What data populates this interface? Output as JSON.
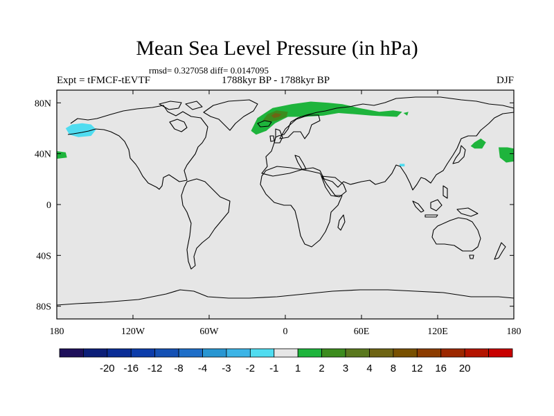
{
  "title": "Mean Sea Level Pressure (in hPa)",
  "stats": "rmsd= 0.327058 diff= 0.0147095",
  "experiment": "Expt = tFMCF-tEVTF",
  "period": "1788kyr BP - 1788kyr BP",
  "season": "DJF",
  "lon_ticks": [
    {
      "value": -180,
      "label": "180"
    },
    {
      "value": -120,
      "label": "120W"
    },
    {
      "value": -60,
      "label": "60W"
    },
    {
      "value": 0,
      "label": "0"
    },
    {
      "value": 60,
      "label": "60E"
    },
    {
      "value": 120,
      "label": "120E"
    },
    {
      "value": 180,
      "label": "180"
    }
  ],
  "lat_ticks": [
    {
      "value": 80,
      "label": "80N"
    },
    {
      "value": 40,
      "label": "40N"
    },
    {
      "value": 0,
      "label": "0"
    },
    {
      "value": -40,
      "label": "40S"
    },
    {
      "value": -80,
      "label": "80S"
    }
  ],
  "colorbar": {
    "colors": [
      "#1e0f5a",
      "#0c1e78",
      "#0a2d96",
      "#0c3caa",
      "#1450b4",
      "#1e6ec8",
      "#2896d2",
      "#3cb4e6",
      "#50dcf0",
      "#e6e6e6",
      "#1eb43c",
      "#3c8c1e",
      "#5a781e",
      "#6e6414",
      "#785000",
      "#8c3c00",
      "#9c2800",
      "#b41400",
      "#c80000"
    ],
    "labels": [
      "-20",
      "-16",
      "-12",
      "-8",
      "-4",
      "-3",
      "-2",
      "-1",
      "1",
      "2",
      "3",
      "4",
      "8",
      "12",
      "16",
      "20"
    ]
  },
  "anomalies": [
    {
      "name": "anomaly-alaska",
      "color": "#50dcf0",
      "category": "-2 to -1",
      "points": [
        [
          -168,
          63
        ],
        [
          -160,
          64
        ],
        [
          -153,
          63
        ],
        [
          -149,
          59
        ],
        [
          -153,
          54
        ],
        [
          -163,
          53
        ],
        [
          -170,
          55
        ],
        [
          -173,
          60
        ]
      ]
    },
    {
      "name": "anomaly-east-pacific",
      "color": "#1eb43c",
      "category": "1 to 2",
      "points": [
        [
          -180,
          42
        ],
        [
          -173,
          41
        ],
        [
          -172,
          37
        ],
        [
          -180,
          36
        ]
      ]
    },
    {
      "name": "anomaly-north-atlantic",
      "color": "#1eb43c",
      "category": "1 to 2",
      "points": [
        [
          -27,
          58
        ],
        [
          -22,
          68
        ],
        [
          -10,
          76
        ],
        [
          5,
          79
        ],
        [
          20,
          81
        ],
        [
          34,
          80
        ],
        [
          45,
          79
        ],
        [
          58,
          76
        ],
        [
          74,
          73
        ],
        [
          85,
          74
        ],
        [
          92,
          73
        ],
        [
          88,
          69
        ],
        [
          68,
          70
        ],
        [
          55,
          71
        ],
        [
          42,
          72
        ],
        [
          30,
          70
        ],
        [
          15,
          69
        ],
        [
          2,
          69
        ],
        [
          -8,
          64
        ],
        [
          -15,
          58
        ],
        [
          -23,
          55
        ]
      ]
    },
    {
      "name": "anomaly-greenland-sea",
      "color": "#3c8c1e",
      "category": "2 to 3",
      "points": [
        [
          -18,
          66
        ],
        [
          -14,
          71
        ],
        [
          -7,
          74
        ],
        [
          2,
          73
        ],
        [
          1,
          69
        ],
        [
          -7,
          66
        ],
        [
          -13,
          65
        ]
      ]
    },
    {
      "name": "anomaly-norwegian-sea",
      "color": "#6e6414",
      "category": "3 to 4",
      "points": [
        [
          -11,
          70
        ],
        [
          -8,
          72
        ],
        [
          -3,
          71
        ],
        [
          -5,
          69
        ],
        [
          -9,
          68
        ]
      ]
    },
    {
      "name": "anomaly-arctic-east",
      "color": "#1eb43c",
      "category": "1 to 2",
      "points": [
        [
          93,
          72
        ],
        [
          97,
          73
        ],
        [
          96,
          70
        ]
      ]
    },
    {
      "name": "anomaly-kurils",
      "color": "#1eb43c",
      "category": "1 to 2",
      "points": [
        [
          149,
          49
        ],
        [
          154,
          52
        ],
        [
          158,
          49
        ],
        [
          155,
          44
        ],
        [
          149,
          44
        ],
        [
          146,
          46
        ]
      ]
    },
    {
      "name": "anomaly-west-pacific",
      "color": "#1eb43c",
      "category": "1 to 2",
      "points": [
        [
          168,
          45
        ],
        [
          175,
          45
        ],
        [
          180,
          44
        ],
        [
          180,
          34
        ],
        [
          174,
          33
        ],
        [
          169,
          37
        ]
      ]
    },
    {
      "name": "anomaly-tibet",
      "color": "#50dcf0",
      "category": "-2 to -1",
      "points": [
        [
          90,
          32
        ],
        [
          94,
          32
        ],
        [
          94,
          30
        ],
        [
          90,
          30
        ]
      ]
    }
  ]
}
